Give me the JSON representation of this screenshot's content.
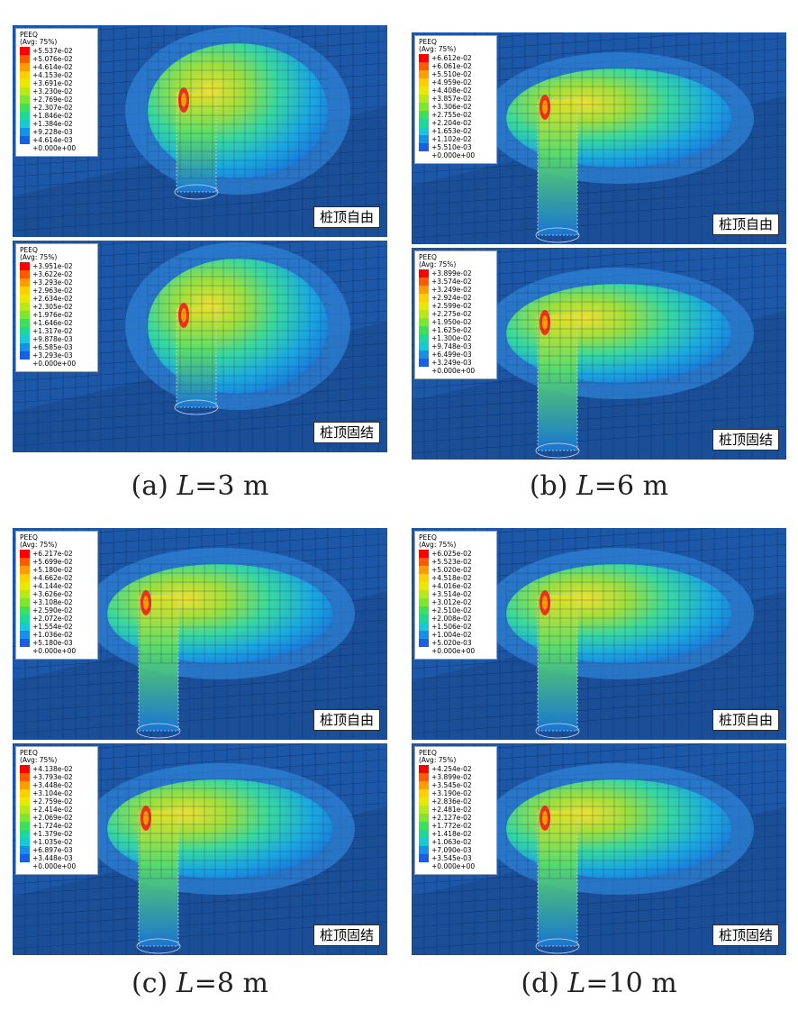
{
  "legend_title": "PEEQ",
  "legend_subtitle": "(Avg: 75%)",
  "legend_colors": [
    "#ff0000",
    "#ff5a00",
    "#ff9c00",
    "#ffd000",
    "#e8e800",
    "#b6e81a",
    "#7ee62c",
    "#3ee05a",
    "#1ed89a",
    "#18c8d2",
    "#1890e8",
    "#1860e0",
    "#1030c8"
  ],
  "mesh_colors": {
    "background": "#1d58a8",
    "grid": "#0d2f66",
    "accent": "#f03018"
  },
  "panels": [
    {
      "caption_open": "(a) ",
      "caption_var": "L",
      "caption_eq": "=3 m",
      "subs": [
        {
          "tag": "桩顶自由",
          "values": [
            "+5.537e-02",
            "+5.076e-02",
            "+4.614e-02",
            "+4.153e-02",
            "+3.691e-02",
            "+3.230e-02",
            "+2.769e-02",
            "+2.307e-02",
            "+1.846e-02",
            "+1.384e-02",
            "+9.228e-03",
            "+4.614e-03",
            "+0.000e+00"
          ]
        },
        {
          "tag": "桩顶固结",
          "values": [
            "+3.951e-02",
            "+3.622e-02",
            "+3.293e-02",
            "+2.963e-02",
            "+2.634e-02",
            "+2.305e-02",
            "+1.976e-02",
            "+1.646e-02",
            "+1.317e-02",
            "+9.878e-03",
            "+6.585e-03",
            "+3.293e-03",
            "+0.000e+00"
          ]
        }
      ]
    },
    {
      "caption_open": "(b) ",
      "caption_var": "L",
      "caption_eq": "=6 m",
      "subs": [
        {
          "tag": "桩顶自由",
          "values": [
            "+6.612e-02",
            "+6.061e-02",
            "+5.510e-02",
            "+4.959e-02",
            "+4.408e-02",
            "+3.857e-02",
            "+3.306e-02",
            "+2.755e-02",
            "+2.204e-02",
            "+1.653e-02",
            "+1.102e-02",
            "+5.510e-03",
            "+0.000e+00"
          ]
        },
        {
          "tag": "桩顶固结",
          "values": [
            "+3.899e-02",
            "+3.574e-02",
            "+3.249e-02",
            "+2.924e-02",
            "+2.599e-02",
            "+2.275e-02",
            "+1.950e-02",
            "+1.625e-02",
            "+1.300e-02",
            "+9.748e-03",
            "+6.499e-03",
            "+3.249e-03",
            "+0.000e+00"
          ]
        }
      ]
    },
    {
      "caption_open": "(c) ",
      "caption_var": "L",
      "caption_eq": "=8 m",
      "subs": [
        {
          "tag": "桩顶自由",
          "values": [
            "+6.217e-02",
            "+5.699e-02",
            "+5.180e-02",
            "+4.662e-02",
            "+4.144e-02",
            "+3.626e-02",
            "+3.108e-02",
            "+2.590e-02",
            "+2.072e-02",
            "+1.554e-02",
            "+1.036e-02",
            "+5.180e-03",
            "+0.000e+00"
          ]
        },
        {
          "tag": "桩顶固结",
          "values": [
            "+4.138e-02",
            "+3.793e-02",
            "+3.448e-02",
            "+3.104e-02",
            "+2.759e-02",
            "+2.414e-02",
            "+2.069e-02",
            "+1.724e-02",
            "+1.379e-02",
            "+1.035e-02",
            "+6.897e-03",
            "+3.448e-03",
            "+0.000e+00"
          ]
        }
      ]
    },
    {
      "caption_open": "(d) ",
      "caption_var": "L",
      "caption_eq": "=10 m",
      "subs": [
        {
          "tag": "桩顶自由",
          "values": [
            "+6.025e-02",
            "+5.523e-02",
            "+5.020e-02",
            "+4.518e-02",
            "+4.016e-02",
            "+3.514e-02",
            "+3.012e-02",
            "+2.510e-02",
            "+2.008e-02",
            "+1.506e-02",
            "+1.004e-02",
            "+5.020e-03",
            "+0.000e+00"
          ]
        },
        {
          "tag": "桩顶固结",
          "values": [
            "+4.254e-02",
            "+3.899e-02",
            "+3.545e-02",
            "+3.190e-02",
            "+2.836e-02",
            "+2.481e-02",
            "+2.127e-02",
            "+1.772e-02",
            "+1.418e-02",
            "+1.063e-02",
            "+7.090e-03",
            "+3.545e-03",
            "+0.000e+00"
          ]
        }
      ]
    }
  ]
}
